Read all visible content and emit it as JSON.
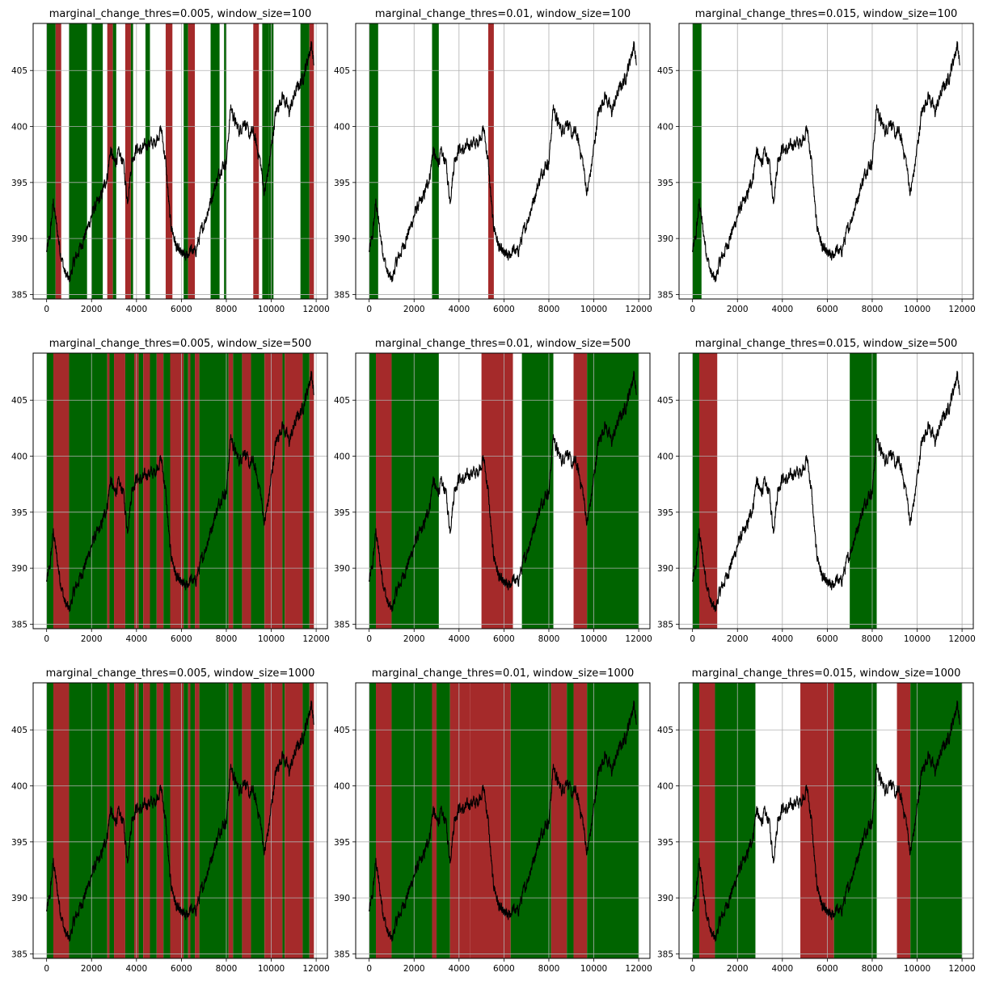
{
  "colors": {
    "up": "#006400",
    "down": "#a52a2a",
    "grid": "#b0b0b0",
    "line": "#000000",
    "frame": "#000000"
  },
  "chart_data": [
    {
      "type": "line",
      "title": "marginal_change_thres=0.005, window_size=100",
      "xlim": [
        -600,
        12500
      ],
      "ylim": [
        384.6,
        409.2
      ],
      "xticks": [
        0,
        2000,
        4000,
        6000,
        8000,
        10000,
        12000
      ],
      "yticks": [
        385,
        390,
        395,
        400,
        405
      ],
      "grid": true,
      "regions": [
        {
          "start": 0,
          "end": 400,
          "class": "up"
        },
        {
          "start": 400,
          "end": 650,
          "class": "down"
        },
        {
          "start": 1000,
          "end": 1800,
          "class": "up"
        },
        {
          "start": 2000,
          "end": 2500,
          "class": "up"
        },
        {
          "start": 2700,
          "end": 2950,
          "class": "down"
        },
        {
          "start": 2950,
          "end": 3100,
          "class": "up"
        },
        {
          "start": 3500,
          "end": 3750,
          "class": "down"
        },
        {
          "start": 3750,
          "end": 3850,
          "class": "up"
        },
        {
          "start": 4400,
          "end": 4600,
          "class": "up"
        },
        {
          "start": 5300,
          "end": 5600,
          "class": "down"
        },
        {
          "start": 6100,
          "end": 6300,
          "class": "up"
        },
        {
          "start": 6300,
          "end": 6600,
          "class": "down"
        },
        {
          "start": 7300,
          "end": 7700,
          "class": "up"
        },
        {
          "start": 7900,
          "end": 8000,
          "class": "up"
        },
        {
          "start": 9200,
          "end": 9450,
          "class": "down"
        },
        {
          "start": 9600,
          "end": 9900,
          "class": "up"
        },
        {
          "start": 9900,
          "end": 10100,
          "class": "up"
        },
        {
          "start": 11300,
          "end": 11700,
          "class": "up"
        },
        {
          "start": 11700,
          "end": 11900,
          "class": "down"
        }
      ]
    },
    {
      "type": "line",
      "title": "marginal_change_thres=0.01, window_size=100",
      "xlim": [
        -600,
        12500
      ],
      "ylim": [
        384.6,
        409.2
      ],
      "xticks": [
        0,
        2000,
        4000,
        6000,
        8000,
        10000,
        12000
      ],
      "yticks": [
        385,
        390,
        395,
        400,
        405
      ],
      "grid": true,
      "regions": [
        {
          "start": 0,
          "end": 400,
          "class": "up"
        },
        {
          "start": 2800,
          "end": 3100,
          "class": "up"
        },
        {
          "start": 5300,
          "end": 5550,
          "class": "down"
        }
      ]
    },
    {
      "type": "line",
      "title": "marginal_change_thres=0.015, window_size=100",
      "xlim": [
        -600,
        12500
      ],
      "ylim": [
        384.6,
        409.2
      ],
      "xticks": [
        0,
        2000,
        4000,
        6000,
        8000,
        10000,
        12000
      ],
      "yticks": [
        385,
        390,
        395,
        400,
        405
      ],
      "grid": true,
      "regions": [
        {
          "start": 0,
          "end": 400,
          "class": "up"
        }
      ]
    },
    {
      "type": "line",
      "title": "marginal_change_thres=0.005, window_size=500",
      "xlim": [
        -600,
        12500
      ],
      "ylim": [
        384.6,
        409.2
      ],
      "xticks": [
        0,
        2000,
        4000,
        6000,
        8000,
        10000,
        12000
      ],
      "yticks": [
        385,
        390,
        395,
        400,
        405
      ],
      "grid": true,
      "regions": [
        {
          "start": 0,
          "end": 300,
          "class": "up"
        },
        {
          "start": 300,
          "end": 1000,
          "class": "down"
        },
        {
          "start": 1000,
          "end": 2700,
          "class": "up"
        },
        {
          "start": 2700,
          "end": 2800,
          "class": "down"
        },
        {
          "start": 2800,
          "end": 3000,
          "class": "up"
        },
        {
          "start": 3000,
          "end": 3500,
          "class": "down"
        },
        {
          "start": 3500,
          "end": 3900,
          "class": "up"
        },
        {
          "start": 3900,
          "end": 4100,
          "class": "down"
        },
        {
          "start": 4100,
          "end": 4300,
          "class": "up"
        },
        {
          "start": 4300,
          "end": 4600,
          "class": "down"
        },
        {
          "start": 4600,
          "end": 4900,
          "class": "up"
        },
        {
          "start": 4900,
          "end": 5200,
          "class": "down"
        },
        {
          "start": 5200,
          "end": 5500,
          "class": "up"
        },
        {
          "start": 5500,
          "end": 6100,
          "class": "down"
        },
        {
          "start": 6100,
          "end": 6300,
          "class": "up"
        },
        {
          "start": 6300,
          "end": 6400,
          "class": "down"
        },
        {
          "start": 6400,
          "end": 6600,
          "class": "up"
        },
        {
          "start": 6600,
          "end": 6800,
          "class": "down"
        },
        {
          "start": 6800,
          "end": 8100,
          "class": "up"
        },
        {
          "start": 8100,
          "end": 8300,
          "class": "down"
        },
        {
          "start": 8300,
          "end": 8700,
          "class": "up"
        },
        {
          "start": 8700,
          "end": 9100,
          "class": "down"
        },
        {
          "start": 9100,
          "end": 9700,
          "class": "up"
        },
        {
          "start": 9700,
          "end": 10500,
          "class": "down"
        },
        {
          "start": 10500,
          "end": 10600,
          "class": "up"
        },
        {
          "start": 10600,
          "end": 11400,
          "class": "down"
        },
        {
          "start": 11400,
          "end": 11700,
          "class": "up"
        },
        {
          "start": 11700,
          "end": 11900,
          "class": "down"
        }
      ]
    },
    {
      "type": "line",
      "title": "marginal_change_thres=0.01, window_size=500",
      "xlim": [
        -600,
        12500
      ],
      "ylim": [
        384.6,
        409.2
      ],
      "xticks": [
        0,
        2000,
        4000,
        6000,
        8000,
        10000,
        12000
      ],
      "yticks": [
        385,
        390,
        395,
        400,
        405
      ],
      "grid": true,
      "regions": [
        {
          "start": 0,
          "end": 300,
          "class": "up"
        },
        {
          "start": 300,
          "end": 1000,
          "class": "down"
        },
        {
          "start": 1000,
          "end": 3100,
          "class": "up"
        },
        {
          "start": 5000,
          "end": 6400,
          "class": "down"
        },
        {
          "start": 6800,
          "end": 8200,
          "class": "up"
        },
        {
          "start": 9100,
          "end": 9700,
          "class": "down"
        },
        {
          "start": 9700,
          "end": 12000,
          "class": "up"
        }
      ]
    },
    {
      "type": "line",
      "title": "marginal_change_thres=0.015, window_size=500",
      "xlim": [
        -600,
        12500
      ],
      "ylim": [
        384.6,
        409.2
      ],
      "xticks": [
        0,
        2000,
        4000,
        6000,
        8000,
        10000,
        12000
      ],
      "yticks": [
        385,
        390,
        395,
        400,
        405
      ],
      "grid": true,
      "regions": [
        {
          "start": 0,
          "end": 300,
          "class": "up"
        },
        {
          "start": 300,
          "end": 1100,
          "class": "down"
        },
        {
          "start": 7000,
          "end": 8200,
          "class": "up"
        }
      ]
    },
    {
      "type": "line",
      "title": "marginal_change_thres=0.005, window_size=1000",
      "xlim": [
        -600,
        12500
      ],
      "ylim": [
        384.6,
        409.2
      ],
      "xticks": [
        0,
        2000,
        4000,
        6000,
        8000,
        10000,
        12000
      ],
      "yticks": [
        385,
        390,
        395,
        400,
        405
      ],
      "grid": true,
      "regions": [
        {
          "start": 0,
          "end": 300,
          "class": "up"
        },
        {
          "start": 300,
          "end": 1000,
          "class": "down"
        },
        {
          "start": 1000,
          "end": 2700,
          "class": "up"
        },
        {
          "start": 2700,
          "end": 2800,
          "class": "down"
        },
        {
          "start": 2800,
          "end": 3000,
          "class": "up"
        },
        {
          "start": 3000,
          "end": 3500,
          "class": "down"
        },
        {
          "start": 3500,
          "end": 3900,
          "class": "up"
        },
        {
          "start": 3900,
          "end": 4100,
          "class": "down"
        },
        {
          "start": 4100,
          "end": 4300,
          "class": "up"
        },
        {
          "start": 4300,
          "end": 4600,
          "class": "down"
        },
        {
          "start": 4600,
          "end": 4900,
          "class": "up"
        },
        {
          "start": 4900,
          "end": 5200,
          "class": "down"
        },
        {
          "start": 5200,
          "end": 5500,
          "class": "up"
        },
        {
          "start": 5500,
          "end": 6100,
          "class": "down"
        },
        {
          "start": 6100,
          "end": 6300,
          "class": "up"
        },
        {
          "start": 6300,
          "end": 6400,
          "class": "down"
        },
        {
          "start": 6400,
          "end": 6600,
          "class": "up"
        },
        {
          "start": 6600,
          "end": 6800,
          "class": "down"
        },
        {
          "start": 6800,
          "end": 8100,
          "class": "up"
        },
        {
          "start": 8100,
          "end": 8300,
          "class": "down"
        },
        {
          "start": 8300,
          "end": 8700,
          "class": "up"
        },
        {
          "start": 8700,
          "end": 9100,
          "class": "down"
        },
        {
          "start": 9100,
          "end": 9700,
          "class": "up"
        },
        {
          "start": 9700,
          "end": 10500,
          "class": "down"
        },
        {
          "start": 10500,
          "end": 10600,
          "class": "up"
        },
        {
          "start": 10600,
          "end": 11400,
          "class": "down"
        },
        {
          "start": 11400,
          "end": 11700,
          "class": "up"
        },
        {
          "start": 11700,
          "end": 11900,
          "class": "down"
        }
      ]
    },
    {
      "type": "line",
      "title": "marginal_change_thres=0.01, window_size=1000",
      "xlim": [
        -600,
        12500
      ],
      "ylim": [
        384.6,
        409.2
      ],
      "xticks": [
        0,
        2000,
        4000,
        6000,
        8000,
        10000,
        12000
      ],
      "yticks": [
        385,
        390,
        395,
        400,
        405
      ],
      "grid": true,
      "regions": [
        {
          "start": 0,
          "end": 300,
          "class": "up"
        },
        {
          "start": 300,
          "end": 1000,
          "class": "down"
        },
        {
          "start": 1000,
          "end": 2800,
          "class": "up"
        },
        {
          "start": 2800,
          "end": 3000,
          "class": "down"
        },
        {
          "start": 3000,
          "end": 3600,
          "class": "up"
        },
        {
          "start": 3600,
          "end": 4500,
          "class": "down"
        },
        {
          "start": 4500,
          "end": 4500,
          "class": "up"
        },
        {
          "start": 4500,
          "end": 6300,
          "class": "down"
        },
        {
          "start": 6300,
          "end": 8100,
          "class": "up"
        },
        {
          "start": 8100,
          "end": 8800,
          "class": "down"
        },
        {
          "start": 8800,
          "end": 9100,
          "class": "up"
        },
        {
          "start": 9100,
          "end": 9700,
          "class": "down"
        },
        {
          "start": 9700,
          "end": 12000,
          "class": "up"
        }
      ]
    },
    {
      "type": "line",
      "title": "marginal_change_thres=0.015, window_size=1000",
      "xlim": [
        -600,
        12500
      ],
      "ylim": [
        384.6,
        409.2
      ],
      "xticks": [
        0,
        2000,
        4000,
        6000,
        8000,
        10000,
        12000
      ],
      "yticks": [
        385,
        390,
        395,
        400,
        405
      ],
      "grid": true,
      "regions": [
        {
          "start": 0,
          "end": 300,
          "class": "up"
        },
        {
          "start": 300,
          "end": 1000,
          "class": "down"
        },
        {
          "start": 1000,
          "end": 2800,
          "class": "up"
        },
        {
          "start": 4800,
          "end": 6300,
          "class": "down"
        },
        {
          "start": 6300,
          "end": 8200,
          "class": "up"
        },
        {
          "start": 9100,
          "end": 9700,
          "class": "down"
        },
        {
          "start": 9700,
          "end": 12000,
          "class": "up"
        }
      ]
    }
  ],
  "price_series": {
    "x": [
      0,
      150,
      300,
      450,
      600,
      800,
      1000,
      1200,
      1500,
      1800,
      2100,
      2400,
      2700,
      2850,
      3000,
      3200,
      3400,
      3600,
      3800,
      4000,
      4200,
      4500,
      4800,
      5100,
      5300,
      5500,
      5800,
      6000,
      6200,
      6400,
      6600,
      6900,
      7200,
      7500,
      7800,
      8000,
      8200,
      8400,
      8600,
      8800,
      9000,
      9200,
      9500,
      9700,
      9900,
      10200,
      10500,
      10800,
      11100,
      11400,
      11600,
      11800,
      11900
    ],
    "y": [
      388.8,
      390.2,
      393.3,
      391.0,
      389.0,
      387.0,
      386.2,
      387.8,
      389.2,
      390.8,
      392.6,
      393.6,
      395.6,
      398.0,
      396.7,
      397.5,
      397.0,
      393.4,
      397.0,
      398.1,
      397.8,
      398.5,
      398.5,
      399.8,
      396.8,
      391.6,
      389.0,
      388.6,
      388.3,
      389.0,
      388.7,
      390.7,
      392.6,
      394.7,
      396.5,
      396.8,
      401.8,
      400.3,
      399.6,
      400.6,
      399.2,
      399.5,
      397.0,
      394.0,
      396.5,
      401.2,
      402.8,
      401.3,
      403.2,
      404.3,
      405.8,
      407.4,
      405.4
    ]
  }
}
